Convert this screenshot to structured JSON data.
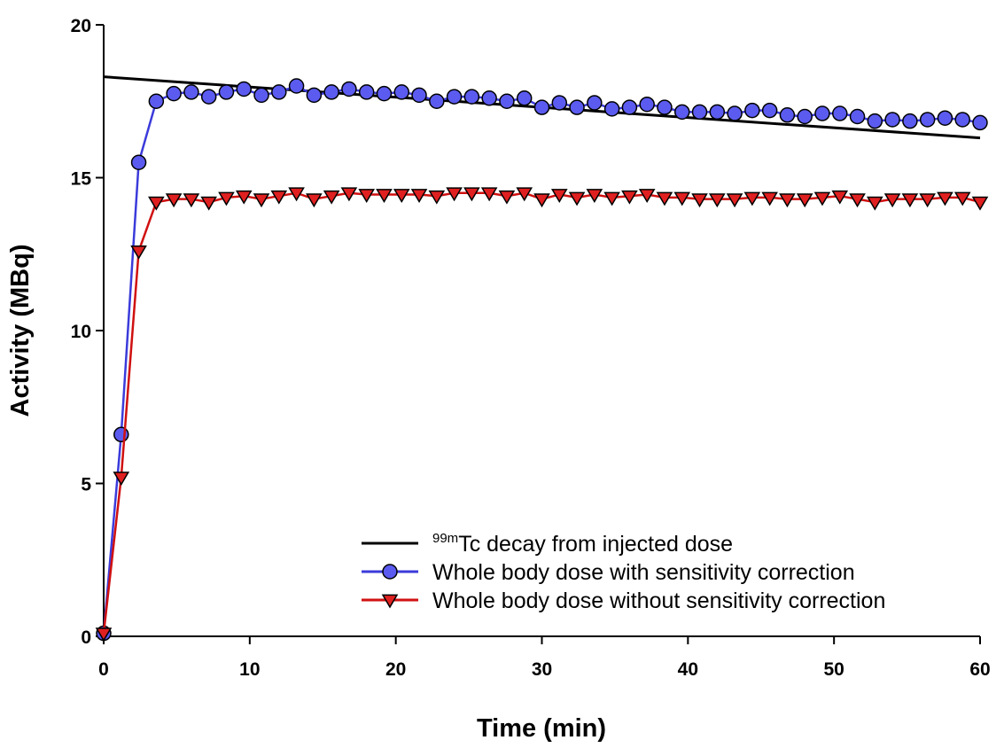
{
  "chart_data": {
    "type": "line",
    "title": "",
    "xlabel": "Time (min)",
    "ylabel": "Activity (MBq)",
    "xlim": [
      0,
      60
    ],
    "ylim": [
      0,
      20
    ],
    "xticks": [
      0,
      10,
      20,
      30,
      40,
      50,
      60
    ],
    "yticks": [
      0,
      5,
      10,
      15,
      20
    ],
    "grid": false,
    "legend_position": "bottom-right",
    "series": [
      {
        "name_sup": "99m",
        "name": "Tc decay from injected dose",
        "style": "line",
        "color": "#000000",
        "x": [
          0,
          60
        ],
        "y": [
          18.3,
          16.3
        ]
      },
      {
        "name": "Whole body dose with sensitivity correction",
        "style": "line+circle",
        "color": "#3b3bdb",
        "marker_color": "#5b5bf0",
        "x": [
          0,
          1.2,
          2.4,
          3.6,
          4.8,
          6.0,
          7.2,
          8.4,
          9.6,
          10.8,
          12.0,
          13.2,
          14.4,
          15.6,
          16.8,
          18.0,
          19.2,
          20.4,
          21.6,
          22.8,
          24.0,
          25.2,
          26.4,
          27.6,
          28.8,
          30.0,
          31.2,
          32.4,
          33.6,
          34.8,
          36.0,
          37.2,
          38.4,
          39.6,
          40.8,
          42.0,
          43.2,
          44.4,
          45.6,
          46.8,
          48.0,
          49.2,
          50.4,
          51.6,
          52.8,
          54.0,
          55.2,
          56.4,
          57.6,
          58.8,
          60.0
        ],
        "y": [
          0.1,
          6.6,
          15.5,
          17.5,
          17.75,
          17.8,
          17.65,
          17.8,
          17.9,
          17.7,
          17.8,
          18.0,
          17.7,
          17.8,
          17.9,
          17.8,
          17.75,
          17.8,
          17.7,
          17.5,
          17.65,
          17.65,
          17.6,
          17.5,
          17.6,
          17.3,
          17.45,
          17.3,
          17.45,
          17.25,
          17.3,
          17.4,
          17.3,
          17.15,
          17.15,
          17.15,
          17.1,
          17.2,
          17.2,
          17.05,
          17.0,
          17.1,
          17.1,
          17.0,
          16.85,
          16.9,
          16.85,
          16.9,
          16.95,
          16.9,
          16.8
        ]
      },
      {
        "name": "Whole body dose without sensitivity correction",
        "style": "line+triangle-down",
        "color": "#d01010",
        "marker_color": "#e02020",
        "x": [
          0,
          1.2,
          2.4,
          3.6,
          4.8,
          6.0,
          7.2,
          8.4,
          9.6,
          10.8,
          12.0,
          13.2,
          14.4,
          15.6,
          16.8,
          18.0,
          19.2,
          20.4,
          21.6,
          22.8,
          24.0,
          25.2,
          26.4,
          27.6,
          28.8,
          30.0,
          31.2,
          32.4,
          33.6,
          34.8,
          36.0,
          37.2,
          38.4,
          39.6,
          40.8,
          42.0,
          43.2,
          44.4,
          45.6,
          46.8,
          48.0,
          49.2,
          50.4,
          51.6,
          52.8,
          54.0,
          55.2,
          56.4,
          57.6,
          58.8,
          60.0
        ],
        "y": [
          0.1,
          5.2,
          12.6,
          14.2,
          14.3,
          14.3,
          14.2,
          14.35,
          14.4,
          14.3,
          14.4,
          14.5,
          14.3,
          14.4,
          14.5,
          14.45,
          14.45,
          14.45,
          14.45,
          14.4,
          14.5,
          14.5,
          14.5,
          14.4,
          14.5,
          14.3,
          14.45,
          14.35,
          14.45,
          14.35,
          14.4,
          14.45,
          14.35,
          14.35,
          14.3,
          14.3,
          14.3,
          14.35,
          14.35,
          14.3,
          14.3,
          14.35,
          14.4,
          14.3,
          14.2,
          14.3,
          14.3,
          14.3,
          14.35,
          14.35,
          14.2
        ]
      }
    ]
  }
}
